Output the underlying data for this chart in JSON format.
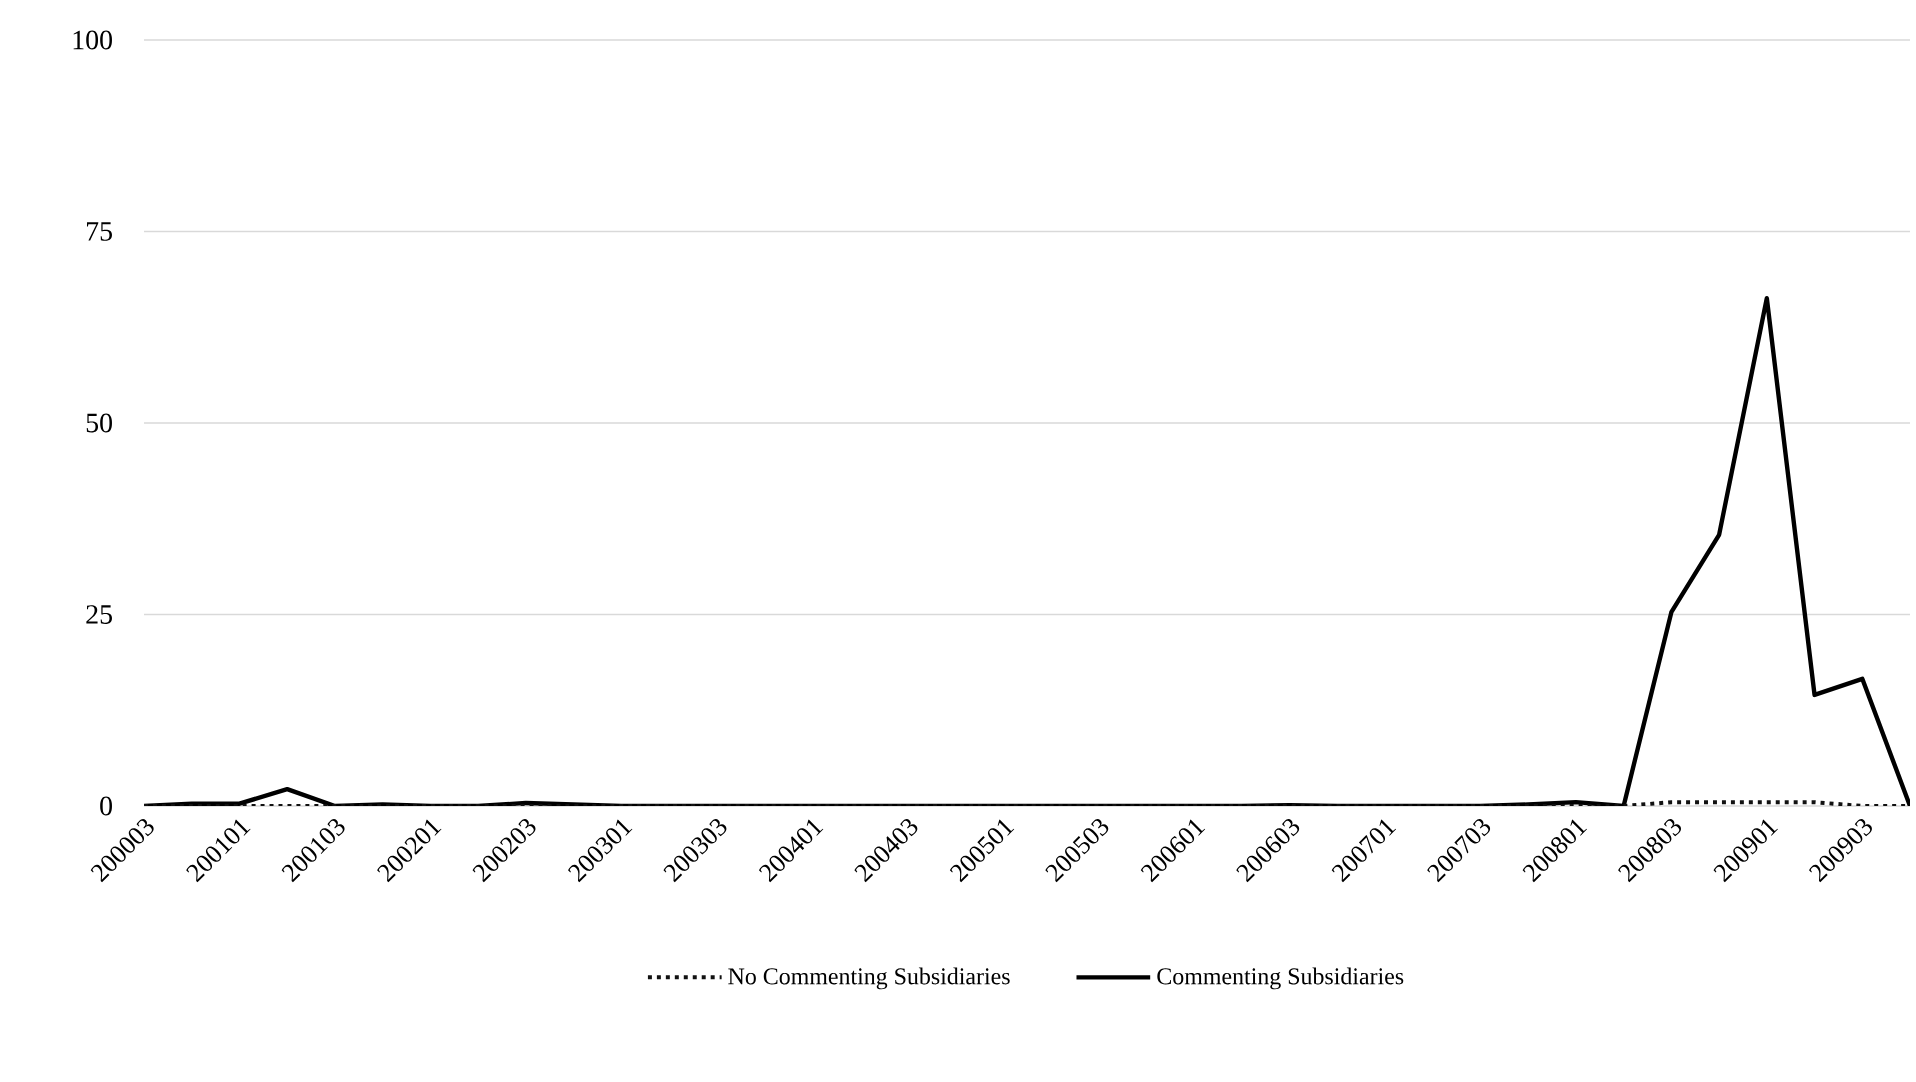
{
  "chart_data": {
    "type": "line",
    "categories": [
      "200003",
      null,
      "200101",
      null,
      "200103",
      null,
      "200201",
      null,
      "200203",
      null,
      "200301",
      null,
      "200303",
      null,
      "200401",
      null,
      "200403",
      null,
      "200501",
      null,
      "200503",
      null,
      "200601",
      null,
      "200603",
      null,
      "200701",
      null,
      "200703",
      null,
      "200801",
      null,
      "200803",
      null,
      "200901",
      null,
      "200903",
      null
    ],
    "series": [
      {
        "name": "No Commenting Subsidiaries",
        "color": "#111111",
        "line_style": "dotted",
        "values": [
          0,
          0,
          0,
          0,
          0,
          0,
          0,
          0,
          0,
          0,
          0,
          0,
          0,
          0,
          0,
          0,
          0,
          0,
          0,
          0,
          0,
          0,
          0,
          0,
          0,
          0,
          0,
          0,
          0,
          0,
          0,
          0,
          0.5,
          0.5,
          0.5,
          0.5,
          0,
          0
        ]
      },
      {
        "name": "Commenting Subsidiaries",
        "color": "#000000",
        "line_style": "solid",
        "values": [
          0,
          0.3,
          0.3,
          2.2,
          0,
          0.2,
          0,
          0,
          0.4,
          0.2,
          0,
          0,
          0,
          0,
          0,
          0,
          0,
          0,
          0,
          0,
          0,
          0,
          0,
          0,
          0.1,
          0,
          0,
          0,
          0,
          0.2,
          0.5,
          0,
          25.3,
          35.4,
          66.3,
          14.5,
          16.6,
          0
        ]
      }
    ],
    "ylim": [
      0,
      100
    ],
    "yticks": [
      0,
      25,
      50,
      75,
      100
    ],
    "grid": "y",
    "legend": "bottom",
    "marker": "none"
  }
}
